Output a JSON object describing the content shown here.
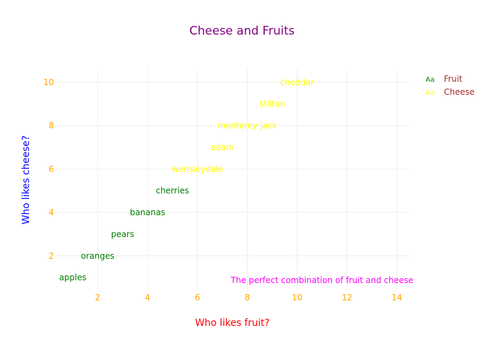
{
  "chart_data": {
    "type": "scatter",
    "mode": "text",
    "title": "Cheese and Fruits",
    "xlabel": "Who likes fruit?",
    "ylabel": "Who likes cheese?",
    "xlim": [
      0.3,
      14.5
    ],
    "ylim": [
      0.4,
      10.6
    ],
    "xticks": [
      2,
      4,
      6,
      8,
      10,
      12,
      14
    ],
    "yticks": [
      2,
      4,
      6,
      8,
      10
    ],
    "grid": true,
    "legend_position": "top-right",
    "colors": {
      "title": "#800080",
      "xlabel": "#ff0000",
      "ylabel": "#0000ff",
      "ticks": "#ffa500",
      "annotation": "#ff00ff",
      "legend_text": "#a52a2a"
    },
    "series": [
      {
        "name": "Fruit",
        "color": "#008000",
        "points": [
          {
            "x": 1,
            "y": 1,
            "text": "apples"
          },
          {
            "x": 2,
            "y": 2,
            "text": "oranges"
          },
          {
            "x": 3,
            "y": 3,
            "text": "pears"
          },
          {
            "x": 4,
            "y": 4,
            "text": "bananas"
          },
          {
            "x": 5,
            "y": 5,
            "text": "cherries"
          }
        ]
      },
      {
        "name": "Cheese",
        "color": "#ffff00",
        "points": [
          {
            "x": 6,
            "y": 6,
            "text": "wensleydale"
          },
          {
            "x": 7,
            "y": 7,
            "text": "edam"
          },
          {
            "x": 8,
            "y": 8,
            "text": "monterey jack"
          },
          {
            "x": 9,
            "y": 9,
            "text": "stilton"
          },
          {
            "x": 10,
            "y": 10,
            "text": "cheddar"
          }
        ]
      }
    ],
    "legend_sample": "Aa",
    "annotation": {
      "x": 11,
      "y": 1,
      "text": "The perfect combination of fruit and cheese"
    }
  }
}
